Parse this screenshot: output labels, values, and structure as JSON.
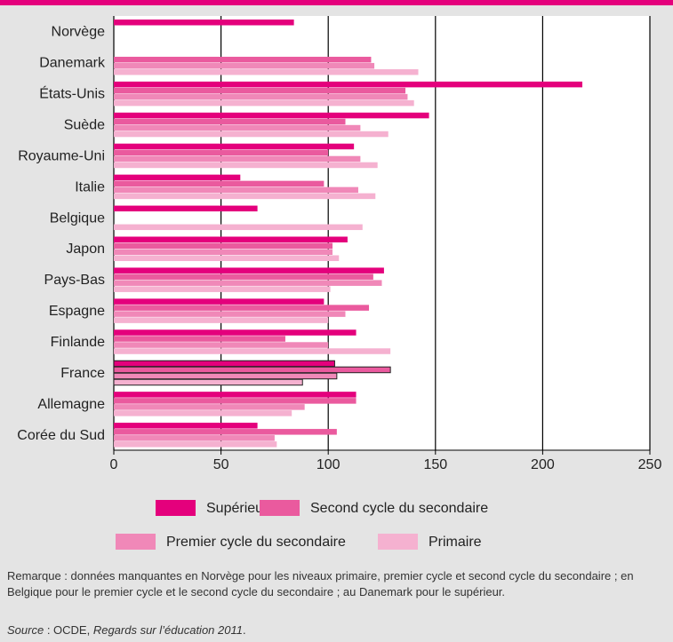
{
  "chart_data": {
    "type": "barh",
    "categories": [
      "Norvège",
      "Danemark",
      "États-Unis",
      "Suède",
      "Royaume-Uni",
      "Italie",
      "Belgique",
      "Japon",
      "Pays-Bas",
      "Espagne",
      "Finlande",
      "France",
      "Allemagne",
      "Corée du Sud"
    ],
    "series": [
      {
        "name": "Supérieur",
        "color": "#e4007c",
        "values": [
          84,
          null,
          218.5,
          147,
          112,
          59,
          67,
          109,
          126,
          98,
          113,
          103,
          113,
          67
        ]
      },
      {
        "name": "Second cycle du secondaire",
        "color": "#ea5a9e",
        "values": [
          null,
          120,
          136,
          108,
          100,
          98,
          null,
          102,
          121,
          119,
          80,
          129,
          113,
          104
        ]
      },
      {
        "name": "Premier cycle du secondaire",
        "color": "#f088b8",
        "values": [
          null,
          121.5,
          137,
          115,
          115,
          114,
          null,
          102,
          125,
          108,
          100,
          104,
          89,
          75
        ]
      },
      {
        "name": "Primaire",
        "color": "#f5b1d0",
        "values": [
          null,
          142,
          140,
          128,
          123,
          122,
          116,
          105,
          101,
          100,
          129,
          88,
          83,
          76
        ]
      }
    ],
    "xlim": [
      0,
      250
    ],
    "xticks": [
      0,
      50,
      100,
      150,
      200,
      250
    ],
    "grid": true,
    "highlight": "France",
    "note": "Remarque : données manquantes en Norvège pour les niveaux primaire, premier cycle et second cycle du secondaire ; en Belgique pour le premier cycle et le second cycle du secondaire ; au Danemark pour le supérieur.",
    "source": {
      "label": "Source",
      "text": " : OCDE, ",
      "title": "Regards sur l’éducation 2011",
      "end": "."
    }
  }
}
